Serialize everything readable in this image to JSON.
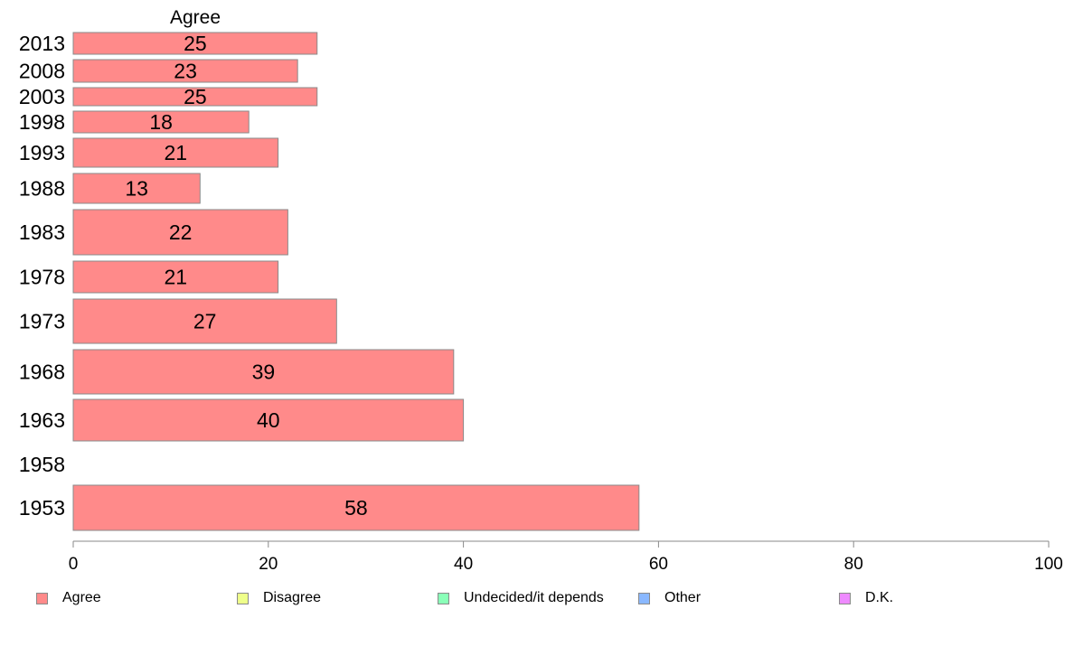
{
  "chart_data": {
    "type": "bar",
    "orientation": "horizontal",
    "title": "Agree",
    "categories": [
      "2013",
      "2008",
      "2003",
      "1998",
      "1993",
      "1988",
      "1983",
      "1978",
      "1973",
      "1968",
      "1963",
      "1958",
      "1953"
    ],
    "series": [
      {
        "name": "Agree",
        "color": "#ff8a8a",
        "values": [
          25,
          23,
          25,
          18,
          21,
          13,
          22,
          21,
          27,
          39,
          40,
          null,
          58
        ],
        "labels": [
          "25",
          "23",
          "25",
          "18",
          "21",
          "13",
          "22",
          "21",
          "27",
          "39",
          "40",
          "",
          "58"
        ]
      }
    ],
    "xlim": [
      0,
      100
    ],
    "xticks": [
      "0",
      "20",
      "40",
      "60",
      "80",
      "100"
    ],
    "grid": false,
    "legend_position": "bottom"
  },
  "legend": [
    {
      "label": "Agree",
      "color": "#ff8a8a"
    },
    {
      "label": "Disagree",
      "color": "#eeff8a"
    },
    {
      "label": "Undecided/it depends",
      "color": "#8affb8"
    },
    {
      "label": "Other",
      "color": "#8ab8ff"
    },
    {
      "label": "D.K.",
      "color": "#ee8aff"
    }
  ]
}
